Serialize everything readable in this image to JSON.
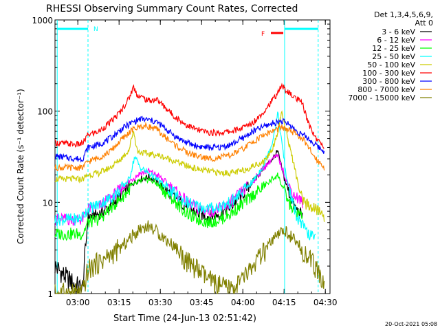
{
  "chart_data": {
    "type": "line",
    "title": "RHESSI Observing Summary Count Rates, Corrected",
    "xlabel": "Start Time (24-Jun-13 02:51:42)",
    "ylabel": "Corrected Count Rate (s⁻¹ detector⁻¹)",
    "x_unit": "minutes after 02:51:42",
    "xlim": [
      0,
      100
    ],
    "ylim": [
      1,
      1000
    ],
    "yscale": "log",
    "x_ticks": [
      {
        "v": 8.3,
        "label": "03:00"
      },
      {
        "v": 23.3,
        "label": "03:15"
      },
      {
        "v": 38.3,
        "label": "03:30"
      },
      {
        "v": 53.3,
        "label": "03:45"
      },
      {
        "v": 68.3,
        "label": "04:00"
      },
      {
        "v": 83.3,
        "label": "04:15"
      },
      {
        "v": 98.3,
        "label": "04:30"
      }
    ],
    "y_ticks": [
      {
        "v": 1,
        "label": "1"
      },
      {
        "v": 10,
        "label": "10"
      },
      {
        "v": 100,
        "label": "100"
      },
      {
        "v": 1000,
        "label": "1000"
      }
    ],
    "legend": {
      "header": [
        "Det 1,3,4,5,6,9,",
        "Att 0"
      ],
      "placement": "right"
    },
    "series": [
      {
        "name": "3 - 6 keV",
        "color": "#000000",
        "x": [
          0,
          4,
          8,
          10,
          12,
          16,
          20,
          24,
          28,
          31,
          34,
          37,
          40,
          44,
          48,
          52,
          56,
          60,
          64,
          68,
          72,
          76,
          79,
          81,
          83,
          85,
          87,
          90
        ],
        "y": [
          2.0,
          1.5,
          1.2,
          1.1,
          7.0,
          7.5,
          9.0,
          12,
          16,
          18,
          19,
          17,
          14,
          11,
          9,
          7.5,
          7.0,
          7.5,
          9,
          12,
          17,
          24,
          30,
          36,
          20,
          13,
          9,
          7
        ]
      },
      {
        "name": "6 - 12 keV",
        "color": "#ff00ff",
        "x": [
          0,
          8,
          10,
          12,
          16,
          20,
          24,
          28,
          31,
          34,
          37,
          40,
          44,
          48,
          52,
          56,
          60,
          64,
          68,
          72,
          76,
          79,
          81,
          83,
          85,
          87,
          90
        ],
        "y": [
          6.5,
          6.5,
          6.5,
          8.5,
          9,
          11,
          14,
          18,
          21,
          22,
          20,
          17,
          13,
          10,
          8.5,
          8,
          8.5,
          10,
          13,
          17,
          24,
          30,
          32,
          22,
          15,
          12,
          10
        ]
      },
      {
        "name": "12 - 25 keV",
        "color": "#00ff00",
        "x": [
          0,
          8,
          10,
          12,
          16,
          20,
          24,
          28,
          31,
          34,
          37,
          40,
          44,
          48,
          52,
          56,
          60,
          64,
          68,
          72,
          76,
          79,
          81,
          83,
          85,
          87,
          90
        ],
        "y": [
          4.5,
          4.5,
          4.5,
          6,
          6.5,
          8.5,
          11,
          15,
          17,
          18,
          16,
          13,
          10,
          7.5,
          6.5,
          6,
          6.5,
          7.5,
          9.5,
          12,
          15,
          18,
          20,
          14,
          10,
          8,
          7
        ]
      },
      {
        "name": "25 - 50 keV",
        "color": "#00ffff",
        "x": [
          0,
          4,
          8,
          10,
          12,
          16,
          20,
          24,
          27,
          29,
          31,
          34,
          37,
          40,
          44,
          48,
          52,
          56,
          60,
          64,
          68,
          72,
          76,
          79,
          81,
          82.5,
          84,
          86,
          88,
          90,
          92,
          95
        ],
        "y": [
          6.5,
          6.5,
          6.5,
          7,
          8.5,
          9.5,
          11,
          14,
          18,
          32,
          24,
          21,
          18,
          15,
          12,
          10,
          9,
          8.5,
          9,
          10,
          13,
          17,
          26,
          45,
          95,
          45,
          20,
          11,
          7,
          5.5,
          4.5,
          4
        ]
      },
      {
        "name": "50 - 100 keV",
        "color": "#cccc00",
        "x": [
          0,
          8,
          10,
          12,
          16,
          20,
          24,
          27,
          28.5,
          30,
          34,
          37,
          40,
          44,
          48,
          52,
          56,
          60,
          64,
          68,
          72,
          76,
          79,
          81,
          82.5,
          84,
          86,
          88,
          90,
          93,
          96,
          98
        ],
        "y": [
          18,
          18,
          18,
          20,
          21,
          24,
          30,
          38,
          62,
          36,
          34,
          33,
          31,
          28,
          25,
          23,
          22,
          21,
          21,
          22,
          25,
          28,
          38,
          60,
          100,
          60,
          34,
          18,
          10,
          9,
          8,
          7
        ]
      },
      {
        "name": "100 - 300 keV",
        "color": "#ff0000",
        "x": [
          0,
          8,
          10,
          12,
          16,
          20,
          24,
          27,
          28.5,
          30,
          34,
          37,
          40,
          44,
          48,
          52,
          56,
          60,
          64,
          68,
          72,
          76,
          79,
          81,
          82.5,
          84,
          86,
          88,
          90,
          92,
          95,
          98
        ],
        "y": [
          45,
          43,
          44,
          55,
          60,
          75,
          100,
          140,
          185,
          150,
          130,
          135,
          110,
          85,
          70,
          62,
          58,
          58,
          60,
          65,
          75,
          100,
          130,
          160,
          190,
          170,
          150,
          135,
          120,
          75,
          50,
          40
        ]
      },
      {
        "name": "300 - 800 keV",
        "color": "#0000ff",
        "x": [
          0,
          8,
          10,
          12,
          16,
          20,
          24,
          28,
          31,
          34,
          37,
          40,
          44,
          48,
          52,
          56,
          60,
          64,
          68,
          72,
          76,
          80,
          82.5,
          85,
          88,
          90,
          92,
          95,
          98
        ],
        "y": [
          32,
          30,
          30,
          40,
          43,
          50,
          63,
          75,
          82,
          80,
          76,
          65,
          52,
          45,
          41,
          40,
          40,
          43,
          50,
          60,
          68,
          75,
          78,
          72,
          60,
          55,
          50,
          42,
          36
        ]
      },
      {
        "name": "800 - 7000 keV",
        "color": "#ff8000",
        "x": [
          0,
          8,
          10,
          12,
          16,
          20,
          24,
          28,
          31,
          34,
          37,
          40,
          44,
          48,
          52,
          56,
          60,
          64,
          68,
          72,
          76,
          80,
          82.5,
          85,
          88,
          90,
          92,
          95,
          98
        ],
        "y": [
          24,
          24,
          24,
          28,
          31,
          36,
          48,
          62,
          68,
          68,
          63,
          52,
          42,
          35,
          32,
          30,
          31,
          33,
          38,
          46,
          55,
          62,
          66,
          62,
          55,
          50,
          40,
          30,
          24
        ]
      },
      {
        "name": "7000 - 15000 keV",
        "color": "#808000",
        "x": [
          0,
          4,
          8,
          10,
          12,
          16,
          20,
          24,
          28,
          31,
          34,
          37,
          40,
          44,
          48,
          52,
          56,
          60,
          64,
          68,
          72,
          76,
          79,
          81,
          83,
          85,
          87,
          90,
          93,
          96,
          98
        ],
        "y": [
          1,
          1,
          1,
          1,
          1.8,
          2.2,
          2.6,
          3.2,
          4.2,
          5.2,
          5.5,
          4.8,
          4.0,
          3.2,
          2.2,
          1.8,
          1.4,
          1.2,
          1.1,
          1.4,
          2.0,
          2.8,
          3.8,
          4.2,
          5.0,
          4.5,
          3.8,
          3.0,
          2.3,
          1.6,
          1.2
        ]
      }
    ],
    "annotations": [
      {
        "label": "N",
        "color": "#00ffff"
      },
      {
        "label": "F",
        "color": "#ff0000"
      }
    ],
    "footer": "20-Oct-2021 05:08"
  }
}
